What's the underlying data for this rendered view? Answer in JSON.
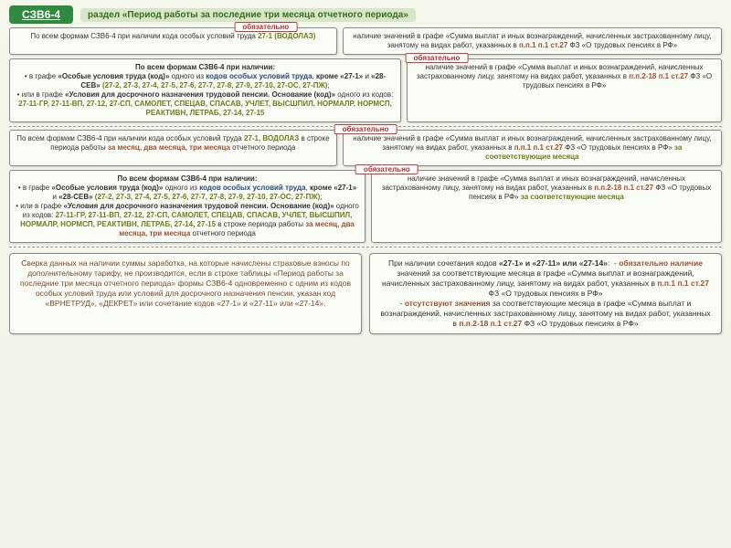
{
  "header": {
    "badge": "СЗВ6-4",
    "section": "раздел «Период работы за последние три месяца отчетного периода»"
  },
  "req_label": "обязательно",
  "rows": [
    {
      "left": "По всем формам СЗВ6-4 при наличии кода особых условий труда <span class='olive'>27-1 (ВОДОЛАЗ)</span>",
      "right": "наличие значений в графе «Сумма выплат и иных вознаграждений, начисленных застрахованному лицу, занятому на видах работ, указанных в <span class='redish'>п.п.1 п.1 ст.27</span> ФЗ «О трудовых пенсиях в РФ»"
    },
    {
      "left": "<span class='bold'>По всем формам СЗВ6-4 при наличии:</span><br>• в графе <span class='bold'>«Особые условия труда (код)»</span> одного из <span class='navy'>кодов особых условий труда</span>, <span class='bold'>кроме «27-1»</span> и <span class='bold'>«28-СЕВ»</span> <span class='olive'>(27-2, 27-3, 27-4, 27-5, 27-6, 27-7, 27-8, 27-9, 27-10, 27-ОС, 27-ПЖ)</span>;<br>• или в графе <span class='bold'>«Условия для досрочного назначения трудовой пенсии. Основание (код)»</span> одного из кодов: <span class='olive'>27-11-ГР, 27-11-ВП, 27-12, 27-СП, САМОЛЕТ, СПЕЦАВ, СПАСАВ, УЧЛЕТ, ВЫСШПИЛ, НОРМАЛР, НОРМСП, РЕАКТИВН, ЛЕТРАБ, 27-14, 27-15</span>",
      "right": "наличие значений в графе «Сумма выплат и иных вознаграждений, начисленных застрахованному лицу, занятому на видах работ, указанных в <span class='redish'>п.п.2-18 п.1 ст.27</span> ФЗ «О трудовых пенсиях в РФ»"
    },
    {
      "left": "По всем формам СЗВ6-4 при наличии кода особых условий труда <span class='olive'>27-1, ВОДОЛАЗ</span> в строке периода работы <span class='redish'>за месяц, два месяца, три месяца</span> отчетного периода",
      "right": "наличие значений в графе «Сумма выплат и иных вознаграждений, начисленных застрахованному лицу, занятому на видах работ, указанных в <span class='redish'>п.п.1 п.1 ст.27</span> ФЗ «О трудовых пенсиях в РФ» <span class='olive'>за соответствующие месяца</span>"
    },
    {
      "left": "<span class='bold'>По всем формам СЗВ6-4 при наличии:</span><br>• в графе <span class='bold'>«Особые условия труда (код)»</span> одного из <span class='navy'>кодов особых условий труда</span>, <span class='bold'>кроме «27-1»</span> и <span class='bold'>«28-СЕВ»</span> <span class='olive'>(27-2, 27-3, 27-4, 27-5, 27-6, 27-7, 27-8, 27-9, 27-10, 27-ОС, 27-ПЖ)</span>;<br>• или в графе <span class='bold'>«Условия для досрочного назначения трудовой пенсии. Основание (код)»</span> одного из кодов: <span class='olive'>27-11-ГР, 27-11-ВП, 27-12, 27-СП, САМОЛЕТ, СПЕЦАВ, СПАСАВ, УЧЛЕТ, ВЫСШПИЛ, НОРМАЛР, НОРМСП, РЕАКТИВН, ЛЕТРАБ, 27-14, 27-15</span> в строке периода работы <span class='redish'>за месяц, два месяца, три месяца</span> отчетного периода",
      "right": "наличие значений в графе «Сумма выплат и иных вознаграждений, начисленных застрахованному лицу, занятому на видах работ, указанных в <span class='redish'>п.п.2-18 п.1 ст.27</span> ФЗ «О трудовых пенсиях в РФ» <span class='olive'>за соответствующие месяца</span>"
    }
  ],
  "bottom": {
    "left": "Сверка данных на наличии суммы заработка, на которые начислены страховые взносы по дополнительному тарифу, не производится, если в строке таблицы «Период работы за последние три месяца отчетного периода» формы СЗВ6-4 одновременно с одним из кодов особых условий труда или условий для досрочного назначения пенсии, указан код «ВРНЕТРУД», «ДЕКРЕТ» или сочетание кодов «27-1» и «27-11» или «27-14».",
    "right": "При наличии сочетания кодов <span class='bold'>«27-1» и «27-11» или «27-14»</span>: &nbsp;- <span class='redish'>обязательно наличие</span> значений за соответствующие месяца в графе «Сумма выплат и вознаграждений, начисленных застрахованному лицу, занятому на видах работ, указанных в <span class='redish'>п.п.1 п.1 ст.27</span> ФЗ «О трудовых пенсиях в РФ»<br>- <span class='redish'>отсутствуют значения</span> за соответствующие месяца в графе «Сумма выплат и вознаграждений, начисленных застрахованному лицу, занятому на видах работ, указанных в <span class='redish'>п.п.2-18 п.1 ст.27</span> ФЗ «О трудовых пенсиях в РФ»"
  }
}
